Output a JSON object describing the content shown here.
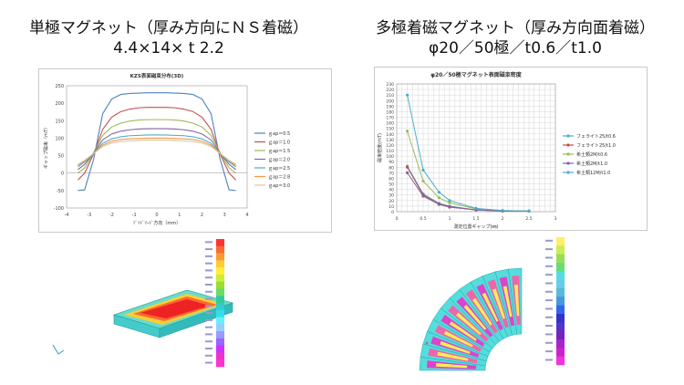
{
  "headings": {
    "left": {
      "line1": "単極マグネット（厚み方向にＮＳ着磁）",
      "line2": "4.4×14× t 2.2"
    },
    "right": {
      "line1": "多極着磁マグネット（厚み方向面着磁）",
      "line2": "φ20／50極／t0.6／t1.0"
    }
  },
  "chart_data": [
    {
      "type": "line",
      "title": "KZS表面磁束分布(3D)",
      "xlabel": "ｿﾞｲﾄﾞﾘｰﾄﾞ方向（mm）",
      "ylabel": "ギャップ磁束（mT）",
      "xlim": [
        -4,
        4
      ],
      "ylim": [
        -100,
        250
      ],
      "xticks": [
        -4,
        -3,
        -2,
        -1,
        0,
        1,
        2,
        3,
        4
      ],
      "yticks": [
        -100,
        -50,
        0,
        50,
        100,
        150,
        200,
        250
      ],
      "grid": false,
      "legend_position": "right",
      "x": [
        -3.5,
        -3.2,
        -2.8,
        -2.4,
        -2.0,
        -1.6,
        -1.2,
        -0.8,
        -0.4,
        0.0,
        0.4,
        0.8,
        1.2,
        1.6,
        2.0,
        2.4,
        2.8,
        3.2,
        3.5
      ],
      "series": [
        {
          "name": "ｇap＝0.5",
          "color": "#4f81bd",
          "values": [
            -50,
            -48,
            40,
            170,
            212,
            225,
            228,
            229,
            230,
            230,
            230,
            229,
            228,
            225,
            212,
            170,
            40,
            -48,
            -50
          ]
        },
        {
          "name": "ｇap＝1.0",
          "color": "#c0504d",
          "values": [
            -20,
            0,
            55,
            125,
            160,
            176,
            183,
            187,
            188,
            188,
            188,
            187,
            183,
            176,
            160,
            125,
            55,
            0,
            -20
          ]
        },
        {
          "name": "ｇap＝1.5",
          "color": "#9bbb59",
          "values": [
            0,
            15,
            58,
            108,
            132,
            143,
            149,
            152,
            153,
            153,
            153,
            152,
            149,
            143,
            132,
            108,
            58,
            15,
            0
          ]
        },
        {
          "name": "ｇap＝2.0",
          "color": "#8064a2",
          "values": [
            10,
            25,
            58,
            95,
            112,
            120,
            124,
            126,
            127,
            127,
            127,
            126,
            124,
            120,
            112,
            95,
            58,
            25,
            10
          ]
        },
        {
          "name": "ｇap＝2.5",
          "color": "#4bacc6",
          "values": [
            18,
            32,
            57,
            85,
            98,
            104,
            107,
            108,
            109,
            109,
            109,
            108,
            107,
            104,
            98,
            85,
            57,
            32,
            18
          ]
        },
        {
          "name": "ｇap＝2.8",
          "color": "#f79646",
          "values": [
            22,
            35,
            57,
            80,
            91,
            96,
            98,
            99,
            100,
            100,
            100,
            99,
            98,
            96,
            91,
            80,
            57,
            35,
            22
          ]
        },
        {
          "name": "ｇap＝3.0",
          "color": "#d9c9a3",
          "values": [
            25,
            37,
            56,
            76,
            86,
            90,
            92,
            93,
            94,
            94,
            94,
            93,
            92,
            90,
            86,
            76,
            56,
            37,
            25
          ]
        }
      ]
    },
    {
      "type": "line",
      "title": "φ20／50極マグネット表面磁束密度",
      "xlabel": "測定位置ギャップ(㎜)",
      "ylabel": "磁束密度(mT)",
      "xlim": [
        0,
        3
      ],
      "ylim": [
        0,
        230
      ],
      "xticks": [
        0,
        0.5,
        1,
        1.5,
        2,
        2.5,
        3
      ],
      "yticks": [
        0,
        10,
        20,
        30,
        40,
        50,
        60,
        70,
        80,
        90,
        100,
        110,
        120,
        130,
        140,
        150,
        160,
        170,
        180,
        190,
        200,
        210,
        220,
        230
      ],
      "grid": true,
      "legend_position": "right",
      "x": [
        0.2,
        0.5,
        0.8,
        1.0,
        1.5,
        2.0,
        2.5
      ],
      "series": [
        {
          "name": "フェライト25/t0.6",
          "color": "#4bacc6",
          "values": [
            82,
            32,
            15,
            10,
            3,
            1,
            1
          ]
        },
        {
          "name": "フェライト25/t1.0",
          "color": "#c0504d",
          "values": [
            80,
            30,
            14,
            9,
            3,
            1,
            1
          ]
        },
        {
          "name": "希土類2M/t0.6",
          "color": "#9bbb59",
          "values": [
            145,
            55,
            25,
            16,
            5,
            2,
            1
          ]
        },
        {
          "name": "希土類2M/t1.0",
          "color": "#8064a2",
          "values": [
            70,
            28,
            13,
            8,
            3,
            1,
            1
          ]
        },
        {
          "name": "希土類12M/t1.0",
          "color": "#4bacc6",
          "values": [
            210,
            75,
            35,
            20,
            6,
            2,
            1
          ]
        }
      ]
    }
  ],
  "colorbar_left": [
    "#ff3333",
    "#ff6a33",
    "#ff9933",
    "#ffcc33",
    "#ffee33",
    "#ccee33",
    "#99dd33",
    "#66dd66",
    "#33cc99",
    "#33cccc",
    "#33ddee",
    "#66eeff",
    "#99ccff",
    "#9999ff",
    "#9966ff",
    "#cc33ff",
    "#ee33cc",
    "#ff33cc"
  ],
  "colorbar_right": [
    "#ffee66",
    "#ccee55",
    "#99dd55",
    "#66dd77",
    "#55dddd",
    "#66ccee",
    "#55bbdd",
    "#4499dd",
    "#3366ee",
    "#3333cc",
    "#5533cc",
    "#7722bb",
    "#aa22cc",
    "#cc22cc",
    "#ee33dd"
  ]
}
